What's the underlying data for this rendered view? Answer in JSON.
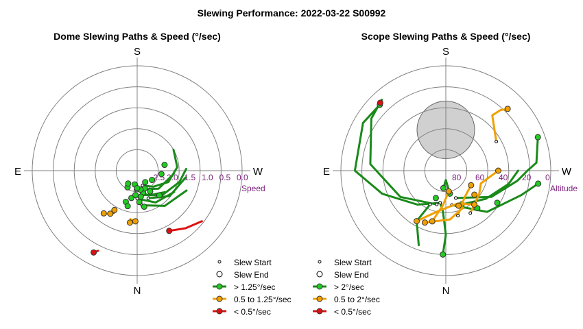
{
  "title": "Slewing Performance: 2022-03-22 S00992",
  "colors": {
    "fast": "#22cc22",
    "fast_line": "#1a8a1a",
    "mid": "#f0a000",
    "slow": "#dd1111",
    "tick": "#7b1c7b",
    "grid": "#808080",
    "moon": "#d0d0d0"
  },
  "chart_data": [
    {
      "type": "scatter",
      "title": "Dome Slewing Paths & Speed (°/sec)",
      "compass": {
        "top": "S",
        "bottom": "N",
        "left": "E",
        "right": "W"
      },
      "radial_label": "Speed",
      "radial_ticks": [
        "2.5",
        "2.0",
        "1.5",
        "1.0",
        "0.5",
        "0.0"
      ],
      "radial_tick_values": [
        2.5,
        2.0,
        1.5,
        1.0,
        0.5,
        0.0
      ],
      "radial_range": [
        3.0,
        0.0
      ],
      "grid": true,
      "legend": {
        "placement": "bottom",
        "items": [
          {
            "label": "Slew Start",
            "symbol": "start"
          },
          {
            "label": "Slew End",
            "symbol": "end"
          },
          {
            "label": "> 1.25°/sec",
            "symbol": "fast"
          },
          {
            "label": "0.5 to 1.25°/sec",
            "symbol": "mid"
          },
          {
            "label": "< 0.5°/sec",
            "symbol": "slow"
          }
        ]
      },
      "series": [
        {
          "name": "> 1.25°/sec",
          "cls": "fast",
          "paths": [
            [
              [
                200,
                2.55
              ],
              [
                225,
                2.35
              ],
              [
                250,
                2.05
              ],
              [
                275,
                1.85
              ],
              [
                300,
                1.8
              ]
            ],
            [
              [
                195,
                2.45
              ],
              [
                230,
                2.2
              ],
              [
                265,
                1.95
              ]
            ],
            [
              [
                190,
                2.3
              ],
              [
                225,
                2.0
              ],
              [
                255,
                1.75
              ],
              [
                272,
                1.6
              ]
            ],
            [
              [
                202,
                2.15
              ],
              [
                232,
                1.82
              ],
              [
                262,
                1.6
              ]
            ],
            [
              [
                188,
                2.0
              ],
              [
                218,
                1.72
              ],
              [
                248,
                1.48
              ]
            ],
            [
              [
                175,
                2.45
              ],
              [
                205,
                2.22
              ],
              [
                232,
                2.0
              ]
            ],
            [
              [
                180,
                2.2
              ],
              [
                210,
                1.95
              ],
              [
                240,
                1.78
              ]
            ]
          ],
          "points": [
            [
              168,
              2.2
            ],
            [
              176,
              2.3
            ],
            [
              184,
              2.1
            ],
            [
              191,
              1.95
            ],
            [
              160,
              2.05
            ],
            [
              165,
              1.95
            ],
            [
              195,
              2.35
            ],
            [
              203,
              2.45
            ],
            [
              212,
              2.3
            ],
            [
              222,
              2.05
            ],
            [
              150,
              2.45
            ],
            [
              145,
              2.55
            ],
            [
              215,
              2.6
            ],
            [
              238,
              2.5
            ],
            [
              262,
              2.3
            ],
            [
              282,
              2.2
            ],
            [
              190,
              2.45
            ],
            [
              188,
              2.25
            ],
            [
              170,
              2.6
            ],
            [
              180,
              2.5
            ]
          ]
        },
        {
          "name": "0.5 to 1.25°/sec",
          "cls": "mid",
          "paths": [
            [
              [
                150,
                1.62
              ],
              [
                145,
                1.5
              ]
            ],
            [
              [
                178,
                1.55
              ],
              [
                172,
                1.6
              ]
            ]
          ],
          "points": [
            [
              148,
              1.55
            ],
            [
              150,
              1.7
            ],
            [
              172,
              1.5
            ],
            [
              178,
              1.55
            ],
            [
              142,
              1.45
            ]
          ]
        },
        {
          "name": "< 0.5°/sec",
          "cls": "slow",
          "paths": [
            [
              [
                208,
                1.05
              ],
              [
                220,
                0.85
              ],
              [
                232,
                0.65
              ]
            ],
            [
              [
                152,
                0.35
              ],
              [
                154,
                0.45
              ]
            ]
          ],
          "points": [
            [
              208,
              1.05
            ],
            [
              152,
              0.35
            ]
          ]
        }
      ]
    },
    {
      "type": "scatter",
      "title": "Scope Slewing Paths & Speed (°/sec)",
      "compass": {
        "top": "S",
        "bottom": "N",
        "left": "E",
        "right": "W"
      },
      "radial_label": "Altitude",
      "radial_ticks": [
        "80",
        "60",
        "40",
        "20",
        "0"
      ],
      "radial_tick_values": [
        80,
        60,
        40,
        20,
        0
      ],
      "radial_range": [
        90,
        0
      ],
      "grid": true,
      "moon": {
        "azimuth": 0,
        "altitude": 55
      },
      "legend": {
        "placement": "bottom",
        "items": [
          {
            "label": "Slew Start",
            "symbol": "start"
          },
          {
            "label": "Slew End",
            "symbol": "end"
          },
          {
            "label": "> 2°/sec",
            "symbol": "fast"
          },
          {
            "label": "0.5 to 2°/sec",
            "symbol": "mid"
          },
          {
            "label": "< 0.5°/sec",
            "symbol": "slow"
          }
        ]
      },
      "series": [
        {
          "name": "> 2°/sec",
          "cls": "fast",
          "paths": [
            [
              [
                178,
                18
              ],
              [
                180,
                35
              ],
              [
                176,
                55
              ],
              [
                170,
                62
              ]
            ],
            [
              [
                170,
                62
              ],
              [
                140,
                52
              ],
              [
                110,
                32
              ],
              [
                90,
                12
              ],
              [
                60,
                8
              ],
              [
                45,
                10
              ]
            ],
            [
              [
                165,
                60
              ],
              [
                120,
                45
              ],
              [
                85,
                25
              ],
              [
                55,
                12
              ],
              [
                42,
                8
              ]
            ],
            [
              [
                200,
                65
              ],
              [
                240,
                45
              ],
              [
                262,
                28
              ],
              [
                270,
                20
              ],
              [
                275,
                12
              ],
              [
                290,
                6
              ]
            ],
            [
              [
                190,
                60
              ],
              [
                225,
                40
              ],
              [
                252,
                22
              ],
              [
                262,
                10
              ]
            ],
            [
              [
                205,
                58
              ],
              [
                235,
                48
              ],
              [
                258,
                35
              ],
              [
                270,
                28
              ]
            ],
            [
              [
                155,
                58
              ],
              [
                150,
                40
              ],
              [
                160,
                22
              ]
            ],
            [
              [
                172,
                75
              ],
              [
                180,
                82
              ],
              [
                190,
                70
              ]
            ]
          ],
          "points": [
            [
              178,
              18
            ],
            [
              45,
              10
            ],
            [
              290,
              6
            ],
            [
              262,
              10
            ],
            [
              205,
              58
            ],
            [
              190,
              70
            ],
            [
              172,
              75
            ],
            [
              160,
              65
            ],
            [
              238,
              38
            ],
            [
              220,
              48
            ]
          ]
        },
        {
          "name": "0.5 to 2°/sec",
          "cls": "mid",
          "paths": [
            [
              [
                158,
                42
              ],
              [
                185,
                48
              ],
              [
                205,
                55
              ]
            ],
            [
              [
                150,
                40
              ],
              [
                170,
                55
              ],
              [
                200,
                60
              ],
              [
                220,
                52
              ]
            ],
            [
              [
                210,
                48
              ],
              [
                235,
                55
              ],
              [
                250,
                58
              ],
              [
                270,
                45
              ]
            ],
            [
              [
                195,
                50
              ],
              [
                215,
                62
              ],
              [
                240,
                65
              ]
            ],
            [
              [
                300,
                40
              ],
              [
                320,
                28
              ],
              [
                318,
                20
              ],
              [
                315,
                15
              ]
            ],
            [
              [
                165,
                45
              ],
              [
                175,
                60
              ],
              [
                188,
                72
              ]
            ]
          ],
          "points": [
            [
              158,
              42
            ],
            [
              150,
              40
            ],
            [
              220,
              52
            ],
            [
              270,
              45
            ],
            [
              240,
              65
            ],
            [
              315,
              15
            ],
            [
              188,
              72
            ],
            [
              165,
              45
            ],
            [
              200,
              58
            ],
            [
              230,
              58
            ]
          ]
        },
        {
          "name": "< 0.5°/sec",
          "cls": "slow",
          "paths": [
            [
              [
                44,
                9
              ],
              [
                45,
                10
              ]
            ]
          ],
          "points": [
            [
              44,
              9
            ]
          ]
        }
      ]
    }
  ]
}
